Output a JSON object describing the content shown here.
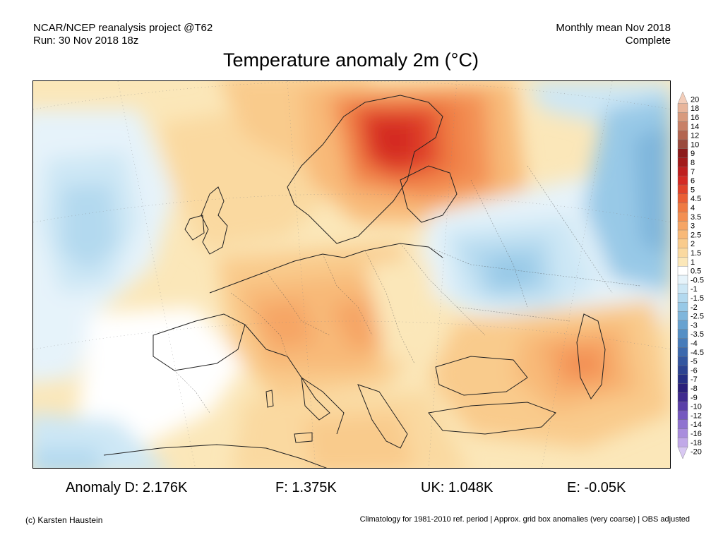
{
  "header": {
    "project": "NCAR/NCEP reanalysis project @T62",
    "run": "Run: 30 Nov 2018 18z",
    "period": "Monthly mean Nov 2018",
    "status": "Complete"
  },
  "title": "Temperature anomaly 2m (°C)",
  "legend": {
    "labels": [
      "20",
      "18",
      "16",
      "14",
      "12",
      "10",
      "9",
      "8",
      "7",
      "6",
      "5",
      "4.5",
      "4",
      "3.5",
      "3",
      "2.5",
      "2",
      "1.5",
      "1",
      "0.5",
      "-0.5",
      "-1",
      "-1.5",
      "-2",
      "-2.5",
      "-3",
      "-3.5",
      "-4",
      "-4.5",
      "-5",
      "-6",
      "-7",
      "-8",
      "-9",
      "-10",
      "-12",
      "-14",
      "-16",
      "-18",
      "-20"
    ],
    "colors": [
      "#f3cdb9",
      "#e8b59b",
      "#d89a7d",
      "#c88066",
      "#b36550",
      "#9a4a3c",
      "#8c1a1a",
      "#a31a1a",
      "#bf1f1f",
      "#d42a24",
      "#e0432b",
      "#ea5f35",
      "#ef7a42",
      "#f38f52",
      "#f6a565",
      "#f8b978",
      "#f9cb8c",
      "#fad9a0",
      "#fbe7b9",
      "#ffffff",
      "#e6f3fa",
      "#cde7f5",
      "#b3d9ef",
      "#98c9e7",
      "#7fb6dc",
      "#67a2d0",
      "#548fc5",
      "#477cba",
      "#3c69ad",
      "#33569f",
      "#2c4391",
      "#262f84",
      "#2a1f7a",
      "#3f2a8e",
      "#5a3fa8",
      "#7558bf",
      "#8f73d0",
      "#a98ddd",
      "#c1a9e8",
      "#d8c8f2"
    ]
  },
  "stats": {
    "d": "Anomaly D: 2.176K",
    "f": "F: 1.375K",
    "uk": "UK: 1.048K",
    "e": "E: -0.05K"
  },
  "footer": {
    "credit": "(c) Karsten Haustein",
    "note": "Climatology for 1981-2010 ref. period | Approx. grid box anomalies (very coarse) | OBS adjusted"
  }
}
